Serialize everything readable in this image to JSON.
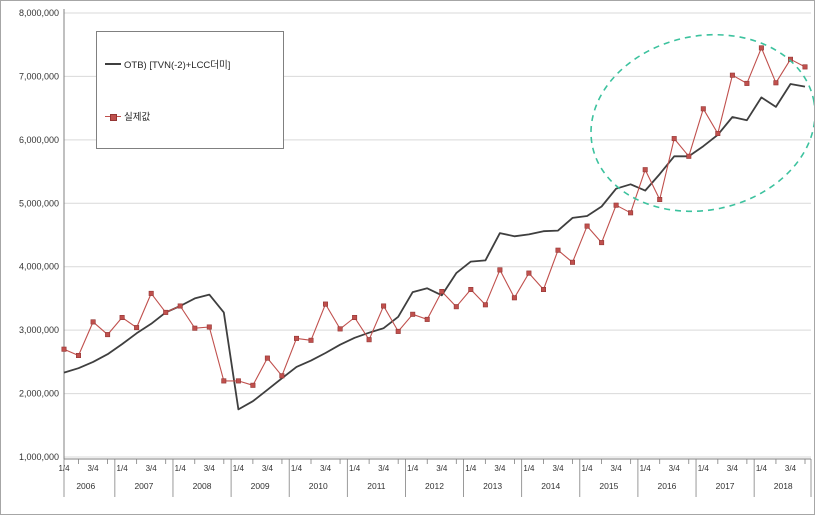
{
  "chart_data": {
    "type": "line",
    "title": "",
    "xlabel": "",
    "ylabel": "",
    "ylim": [
      1000000,
      8000000
    ],
    "y_tick_step": 1000000,
    "y_tick_labels": [
      "8,000,000",
      "7,000,000",
      "6,000,000",
      "5,000,000",
      "4,000,000",
      "3,000,000",
      "2,000,000",
      "1,000,000"
    ],
    "x_years": [
      "2006",
      "2007",
      "2008",
      "2009",
      "2010",
      "2011",
      "2012",
      "2013",
      "2014",
      "2015",
      "2016",
      "2017",
      "2018"
    ],
    "x_quarter_tick_labels": [
      "1/4",
      "3/4"
    ],
    "grid": true,
    "legend_position": "top-left",
    "quarters": [
      "2006Q1",
      "2006Q2",
      "2006Q3",
      "2006Q4",
      "2007Q1",
      "2007Q2",
      "2007Q3",
      "2007Q4",
      "2008Q1",
      "2008Q2",
      "2008Q3",
      "2008Q4",
      "2009Q1",
      "2009Q2",
      "2009Q3",
      "2009Q4",
      "2010Q1",
      "2010Q2",
      "2010Q3",
      "2010Q4",
      "2011Q1",
      "2011Q2",
      "2011Q3",
      "2011Q4",
      "2012Q1",
      "2012Q2",
      "2012Q3",
      "2012Q4",
      "2013Q1",
      "2013Q2",
      "2013Q3",
      "2013Q4",
      "2014Q1",
      "2014Q2",
      "2014Q3",
      "2014Q4",
      "2015Q1",
      "2015Q2",
      "2015Q3",
      "2015Q4",
      "2016Q1",
      "2016Q2",
      "2016Q3",
      "2016Q4",
      "2017Q1",
      "2017Q2",
      "2017Q3",
      "2017Q4",
      "2018Q1",
      "2018Q2",
      "2018Q3",
      "2018Q4"
    ],
    "series": [
      {
        "name": "OTB) [TVN(-2)+LCC더미]",
        "color": "#3f3f3f",
        "marker": "none",
        "values": [
          2330000,
          2400000,
          2500000,
          2620000,
          2780000,
          2950000,
          3100000,
          3280000,
          3380000,
          3500000,
          3560000,
          3280000,
          1750000,
          1880000,
          2060000,
          2240000,
          2420000,
          2520000,
          2640000,
          2770000,
          2880000,
          2960000,
          3030000,
          3210000,
          3600000,
          3660000,
          3550000,
          3900000,
          4080000,
          4100000,
          4530000,
          4480000,
          4510000,
          4560000,
          4570000,
          4770000,
          4800000,
          4950000,
          5230000,
          5300000,
          5200000,
          5460000,
          5740000,
          5740000,
          5900000,
          6080000,
          6360000,
          6310000,
          6670000,
          6520000,
          6880000,
          6840000
        ]
      },
      {
        "name": "실제값",
        "color": "#c0504d",
        "marker": "square",
        "values": [
          2700000,
          2600000,
          3130000,
          2930000,
          3200000,
          3040000,
          3580000,
          3280000,
          3380000,
          3030000,
          3050000,
          2200000,
          2200000,
          2130000,
          2560000,
          2280000,
          2870000,
          2840000,
          3410000,
          3020000,
          3200000,
          2850000,
          3380000,
          2980000,
          3250000,
          3170000,
          3610000,
          3370000,
          3640000,
          3400000,
          3950000,
          3510000,
          3900000,
          3640000,
          4260000,
          4070000,
          4640000,
          4380000,
          4970000,
          4850000,
          5530000,
          5060000,
          6020000,
          5740000,
          6490000,
          6100000,
          7020000,
          6890000,
          7450000,
          6900000,
          7270000,
          7150000
        ]
      }
    ],
    "annotations": [
      {
        "type": "ellipse",
        "style": "dashed",
        "color": "#3cc29e",
        "around": "2015-2018 divergence region"
      }
    ],
    "colors": {
      "grid": "#d9d9d9",
      "axis": "#808080",
      "tick_text": "#333333",
      "marker_edge": "#943634"
    }
  }
}
